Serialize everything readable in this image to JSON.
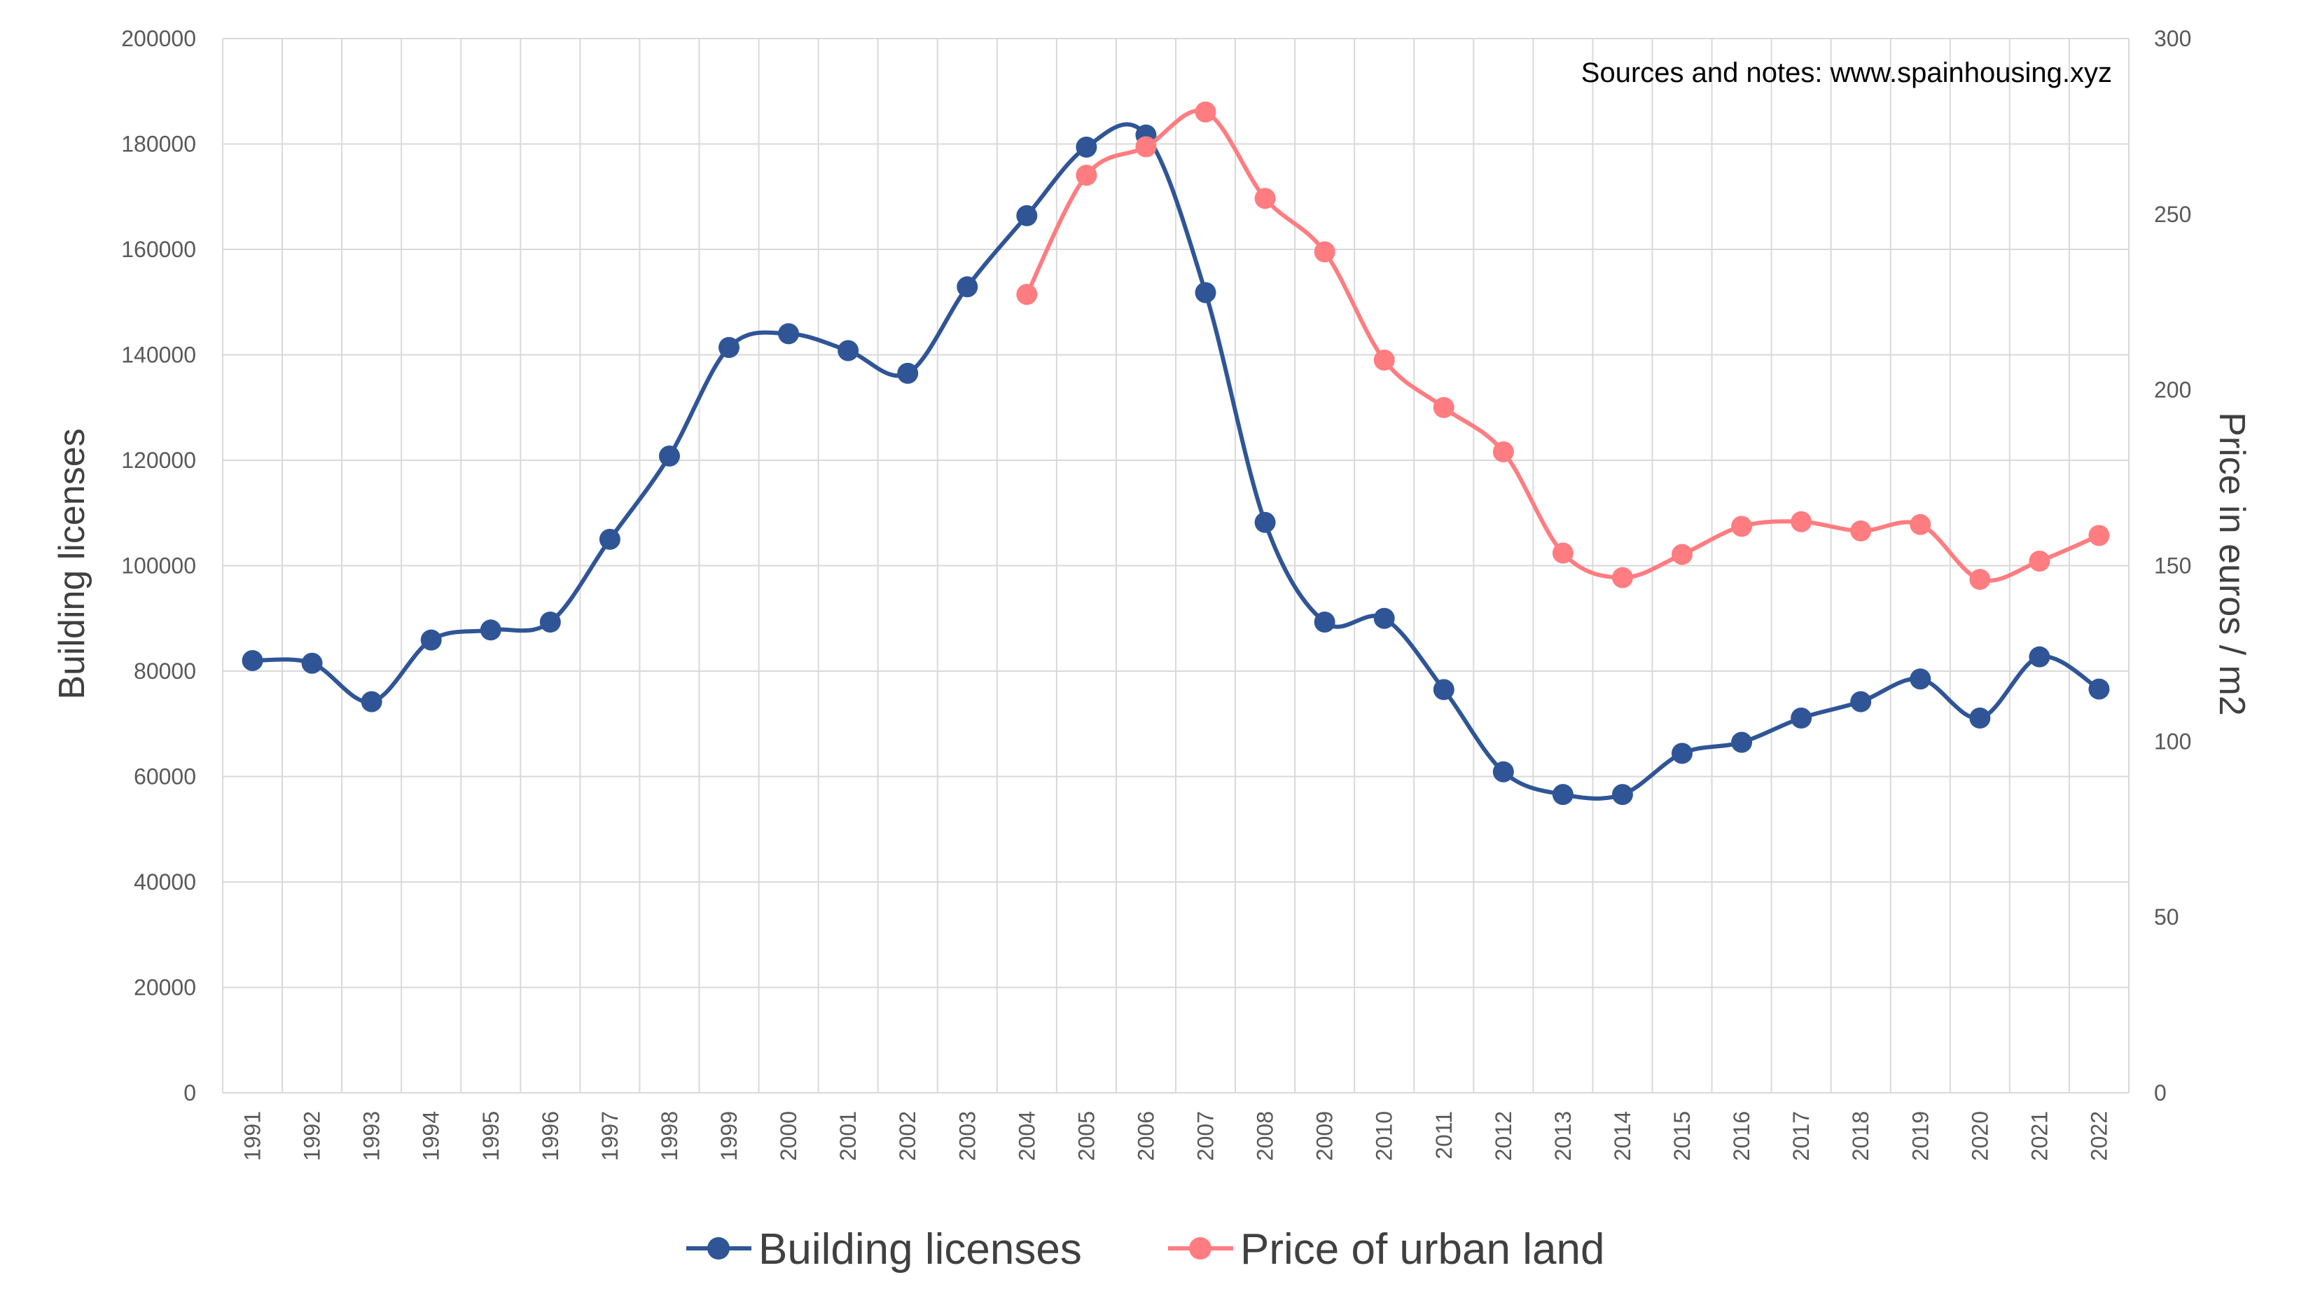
{
  "chart_data": {
    "type": "line",
    "x": [
      "1991",
      "1992",
      "1993",
      "1994",
      "1995",
      "1996",
      "1997",
      "1998",
      "1999",
      "2000",
      "2001",
      "2002",
      "2003",
      "2004",
      "2005",
      "2006",
      "2007",
      "2008",
      "2009",
      "2010",
      "2011",
      "2012",
      "2013",
      "2014",
      "2015",
      "2016",
      "2017",
      "2018",
      "2019",
      "2020",
      "2021",
      "2022"
    ],
    "series": [
      {
        "name": "Building licenses",
        "axis": "left",
        "color": "#2F5597",
        "values": [
          82000,
          81500,
          74200,
          85900,
          87800,
          89300,
          105000,
          120800,
          141400,
          144000,
          140800,
          136500,
          152900,
          166400,
          179400,
          181700,
          151800,
          108200,
          89300,
          90000,
          76500,
          60900,
          56600,
          56600,
          64400,
          66500,
          71100,
          74200,
          78500,
          71100,
          82700,
          76600
        ]
      },
      {
        "name": "Price of urban land",
        "axis": "right",
        "color": "#FF7C80",
        "values": [
          null,
          null,
          null,
          null,
          null,
          null,
          null,
          null,
          null,
          null,
          null,
          null,
          null,
          227.2,
          261.1,
          269.2,
          279.1,
          254.5,
          239.3,
          208.5,
          195.0,
          182.4,
          153.6,
          146.6,
          153.2,
          161.2,
          162.5,
          159.9,
          161.7,
          146.1,
          151.3,
          158.6
        ]
      }
    ],
    "ylabel": "Building licenses",
    "y2label": "Price in euros / m2",
    "ylim": [
      0,
      200000
    ],
    "y2lim": [
      0,
      300
    ],
    "yticks": [
      "0",
      "20000",
      "40000",
      "60000",
      "80000",
      "100000",
      "120000",
      "140000",
      "160000",
      "180000",
      "200000"
    ],
    "y2ticks": [
      "0",
      "50",
      "100",
      "150",
      "200",
      "250",
      "300"
    ],
    "grid": true,
    "legend_position": "bottom",
    "annotation": "Sources and notes: www.spainhousing.xyz"
  }
}
